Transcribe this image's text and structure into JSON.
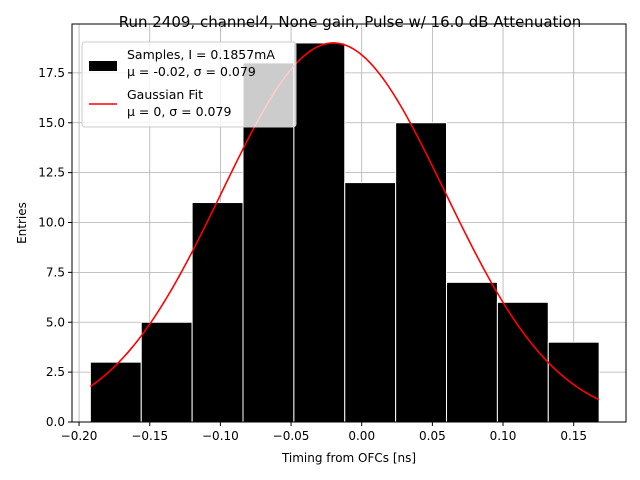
{
  "chart_data": {
    "type": "bar",
    "title": "Run 2409, channel4, None gain, Pulse w/ 16.0 dB Attenuation",
    "xlabel": "Timing from OFCs [ns]",
    "ylabel": "Entries",
    "xlim": [
      -0.205,
      0.187
    ],
    "ylim": [
      0,
      19.95
    ],
    "grid": true,
    "legend_position": "upper-left",
    "x_ticks": [
      -0.2,
      -0.15,
      -0.1,
      -0.05,
      0.0,
      0.05,
      0.1,
      0.15
    ],
    "x_tick_labels": [
      "−0.20",
      "−0.15",
      "−0.10",
      "−0.05",
      "0.00",
      "0.05",
      "0.10",
      "0.15"
    ],
    "y_ticks": [
      0.0,
      2.5,
      5.0,
      7.5,
      10.0,
      12.5,
      15.0,
      17.5
    ],
    "y_tick_labels": [
      "0.0",
      "2.5",
      "5.0",
      "7.5",
      "10.0",
      "12.5",
      "15.0",
      "17.5"
    ],
    "histogram": {
      "name": "Samples, I = 0.1857mA",
      "stats_line": "μ = -0.02, σ = 0.079",
      "color": "#000000",
      "edge_color": "#ffffff",
      "bin_edges": [
        -0.192,
        -0.156,
        -0.12,
        -0.084,
        -0.048,
        -0.012,
        0.024,
        0.06,
        0.096,
        0.132,
        0.168
      ],
      "counts": [
        3,
        5,
        11,
        18,
        19,
        12,
        15,
        7,
        6,
        4
      ]
    },
    "fit": {
      "name": "Gaussian Fit",
      "stats_line": "μ = 0, σ = 0.079",
      "color": "#ff0000",
      "mu": -0.02,
      "sigma": 0.079,
      "amplitude": 19.0,
      "x_range": [
        -0.192,
        0.168
      ]
    }
  }
}
